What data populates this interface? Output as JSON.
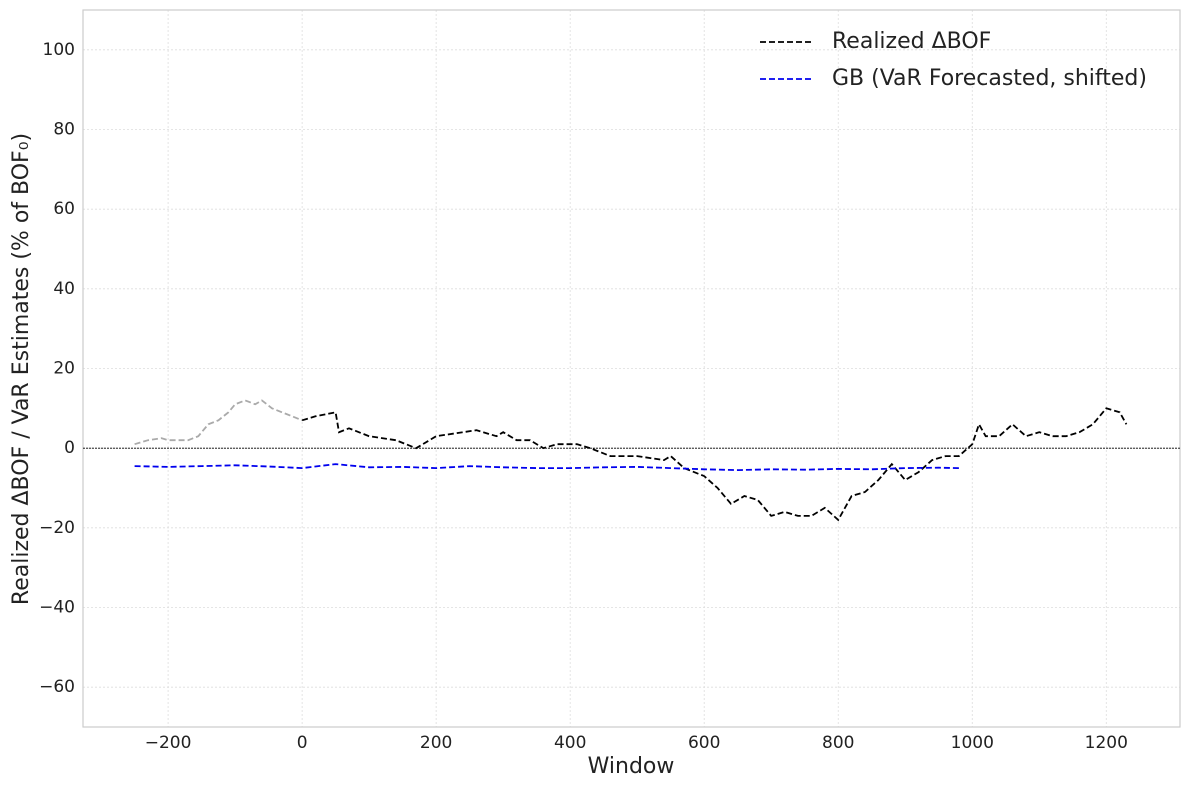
{
  "chart_data": {
    "type": "line",
    "x_label": "Window",
    "y_label": "Realized ΔBOF / VaR Estimates (% of BOF₀)",
    "xlim": [
      -327,
      1310
    ],
    "ylim": [
      -70,
      110
    ],
    "xticks": [
      {
        "value": -200,
        "label": "−200"
      },
      0,
      200,
      400,
      600,
      800,
      1000,
      1200
    ],
    "yticks": [
      {
        "value": -60,
        "label": "−60"
      },
      {
        "value": -40,
        "label": "−40"
      },
      {
        "value": -20,
        "label": "−20"
      },
      0,
      20,
      40,
      60,
      80,
      100
    ],
    "grid": true,
    "hline": 0,
    "legend": "upper right",
    "series": [
      {
        "color": "#aaaaaa",
        "x": [
          -250,
          -230,
          -210,
          -200,
          -185,
          -170,
          -155,
          -140,
          -125,
          -110,
          -100,
          -85,
          -70,
          -60,
          -45,
          -30,
          -15,
          0
        ],
        "values": [
          1,
          2,
          2.5,
          2,
          2,
          2,
          3,
          6,
          7,
          9,
          11,
          12,
          11,
          12,
          10,
          9,
          8,
          7
        ]
      },
      {
        "name": "Realized ΔBOF",
        "color": "#000000",
        "x": [
          0,
          20,
          50,
          55,
          70,
          100,
          140,
          170,
          200,
          240,
          260,
          290,
          300,
          320,
          340,
          360,
          380,
          410,
          430,
          460,
          500,
          540,
          550,
          570,
          600,
          620,
          640,
          660,
          680,
          700,
          720,
          740,
          760,
          780,
          800,
          820,
          840,
          860,
          880,
          900,
          920,
          940,
          960,
          980,
          1000,
          1010,
          1020,
          1040,
          1060,
          1080,
          1100,
          1120,
          1140,
          1160,
          1180,
          1200,
          1220,
          1230
        ],
        "values": [
          7,
          8,
          9,
          4,
          5,
          3,
          2,
          0,
          3,
          4,
          4.5,
          3,
          4,
          2,
          2,
          0,
          1,
          1,
          0,
          -2,
          -2,
          -3,
          -2,
          -5,
          -7,
          -10,
          -14,
          -12,
          -13,
          -17,
          -16,
          -17,
          -17,
          -15,
          -18,
          -12,
          -11,
          -8,
          -4,
          -8,
          -6,
          -3,
          -2,
          -2,
          1,
          6,
          3,
          3,
          6,
          3,
          4,
          3,
          3,
          4,
          6,
          10,
          9,
          6
        ]
      },
      {
        "name": "GB (VaR Forecasted, shifted)",
        "color": "#0000ee",
        "x": [
          -250,
          -200,
          -150,
          -100,
          -50,
          0,
          50,
          100,
          150,
          200,
          250,
          300,
          350,
          400,
          450,
          500,
          550,
          600,
          650,
          700,
          750,
          800,
          850,
          900,
          950,
          980
        ],
        "values": [
          -4.5,
          -4.7,
          -4.5,
          -4.3,
          -4.6,
          -5,
          -4,
          -4.8,
          -4.7,
          -5,
          -4.5,
          -4.8,
          -5,
          -5,
          -4.8,
          -4.7,
          -5,
          -5.3,
          -5.5,
          -5.3,
          -5.4,
          -5.2,
          -5.3,
          -5,
          -4.9,
          -5
        ]
      }
    ]
  }
}
